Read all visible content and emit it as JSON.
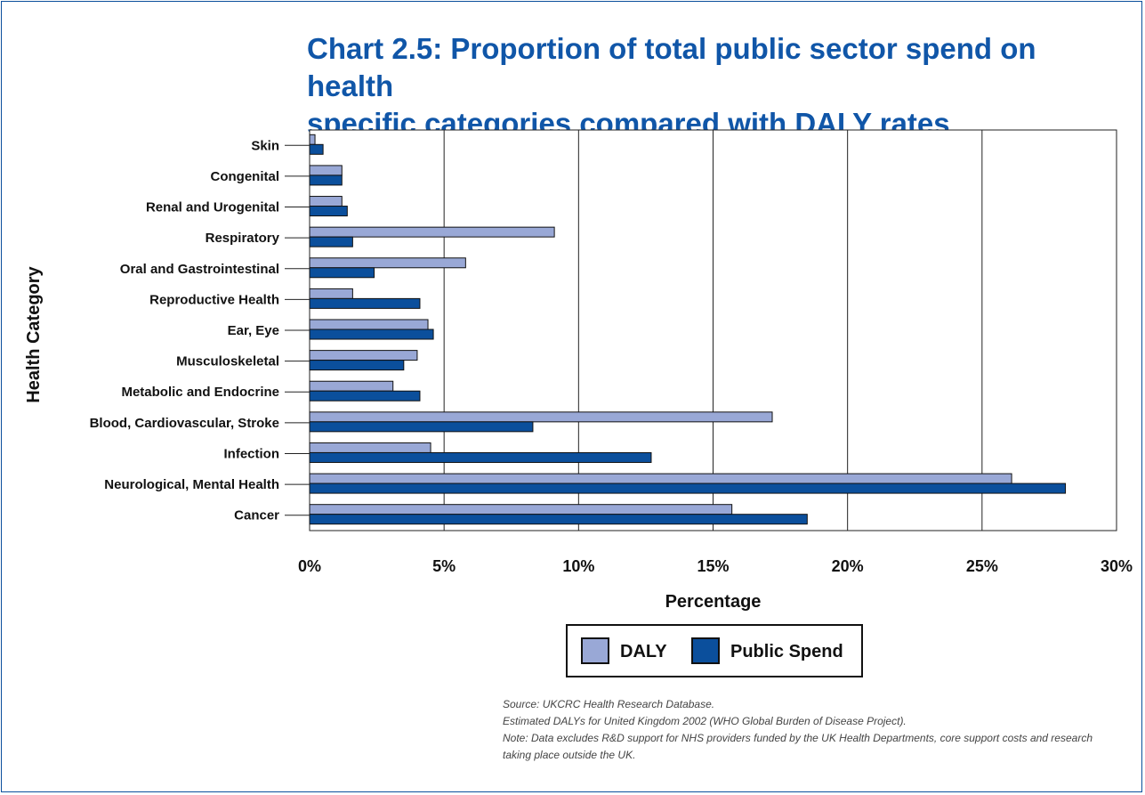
{
  "title_lines": [
    "Chart 2.5: Proportion of total public sector spend on health",
    "specific categories compared with DALY rates"
  ],
  "notes": [
    "Source: UKCRC Health Research Database.",
    "Estimated DALYs for United Kingdom 2002 (WHO Global Burden of Disease Project).",
    "Note: Data excludes R&D support for NHS providers funded by the UK Health Departments, core support costs and research",
    "taking place outside the UK."
  ],
  "chart_data": {
    "type": "bar",
    "orientation": "horizontal",
    "title": "Chart 2.5: Proportion of total public sector spend on health specific categories compared with DALY rates",
    "xlabel": "Percentage",
    "ylabel": "Health Category",
    "xlim": [
      0,
      30
    ],
    "x_ticks": [
      "0%",
      "5%",
      "10%",
      "15%",
      "20%",
      "25%",
      "30%"
    ],
    "x_tick_values": [
      0,
      5,
      10,
      15,
      20,
      25,
      30
    ],
    "grid": "vertical",
    "legend_position": "bottom-center",
    "categories": [
      "Skin",
      "Congenital",
      "Renal and Urogenital",
      "Respiratory",
      "Oral and Gastrointestinal",
      "Reproductive Health",
      "Ear, Eye",
      "Musculoskeletal",
      "Metabolic and Endocrine",
      "Blood, Cardiovascular, Stroke",
      "Infection",
      "Neurological, Mental Health",
      "Cancer"
    ],
    "series": [
      {
        "name": "DALY",
        "color": "#99a8d6",
        "values": [
          0.2,
          1.2,
          1.2,
          9.1,
          5.8,
          1.6,
          4.4,
          4.0,
          3.1,
          17.2,
          4.5,
          26.1,
          15.7
        ]
      },
      {
        "name": "Public Spend",
        "color": "#0b4f9c",
        "values": [
          0.5,
          1.2,
          1.4,
          1.6,
          2.4,
          4.1,
          4.6,
          3.5,
          4.1,
          8.3,
          12.7,
          28.1,
          18.5
        ]
      }
    ]
  }
}
